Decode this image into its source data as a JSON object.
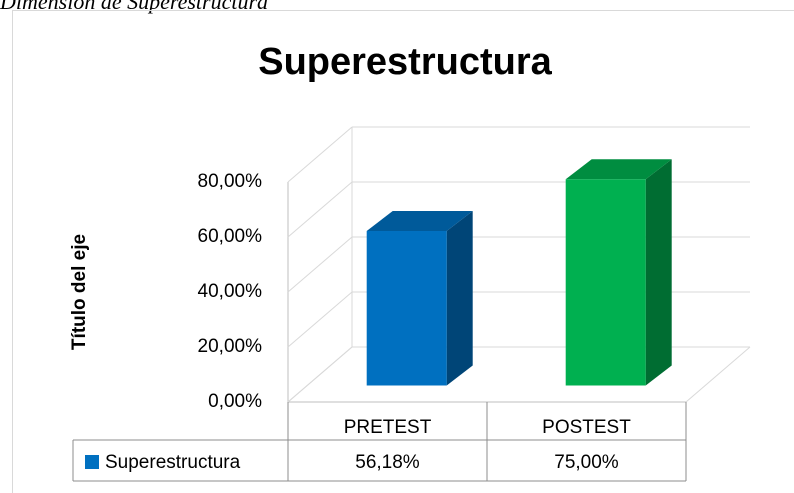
{
  "caption": "Dimensión de Superestructura",
  "chart_data": {
    "type": "bar3d",
    "title": "Superestructura",
    "y_label": "Título del eje",
    "categories": [
      "PRETEST",
      "POSTEST"
    ],
    "series": [
      {
        "name": "Superestructura",
        "colors": [
          "#0070C0",
          "#00B050"
        ],
        "values": [
          56.18,
          75
        ],
        "value_labels": [
          "56,18%",
          "75,00%"
        ]
      }
    ],
    "ylim": [
      0,
      80
    ],
    "yticks": [
      {
        "value": 0,
        "label": "0,00%"
      },
      {
        "value": 20,
        "label": "20,00%"
      },
      {
        "value": 40,
        "label": "40,00%"
      },
      {
        "value": 60,
        "label": "60,00%"
      },
      {
        "value": 80,
        "label": "80,00%"
      }
    ],
    "grid": true,
    "data_table": true
  }
}
